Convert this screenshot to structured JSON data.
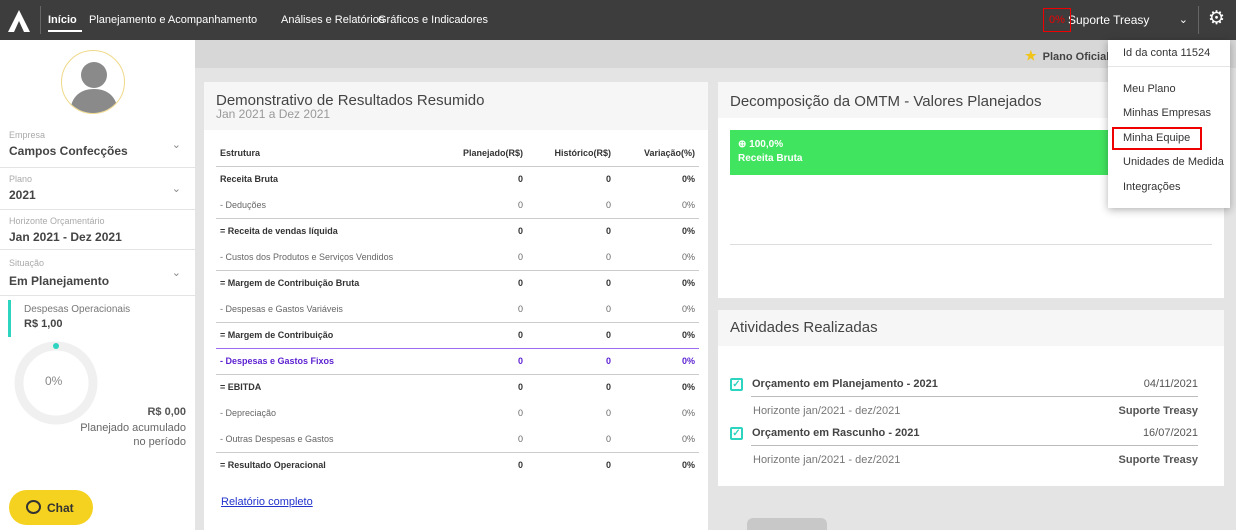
{
  "nav": {
    "items": [
      "Início",
      "Planejamento e Acompanhamento",
      "Análises e Relatórios",
      "Gráficos e Indicadores"
    ],
    "percent_badge": "0%",
    "user_name": "Suporte Treasy"
  },
  "subbar": {
    "plan_label": "Plano Oficial"
  },
  "sidebar": {
    "company_label": "Empresa",
    "company_value": "Campos Confecções",
    "plan_label": "Plano",
    "plan_value": "2021",
    "horizon_label": "Horizonte Orçamentário",
    "horizon_value": "Jan 2021 - Dez 2021",
    "status_label": "Situação",
    "status_value": "Em Planejamento",
    "expense_label": "Despesas Operacionais",
    "expense_value": "R$ 1,00",
    "gauge_percent": "0%",
    "gauge_amount": "R$ 0,00",
    "gauge_text_1": "Planejado acumulado",
    "gauge_text_2": "no período",
    "chat_label": "Chat"
  },
  "dre": {
    "title": "Demonstrativo de Resultados Resumido",
    "subtitle": "Jan 2021 a Dez 2021",
    "headers": [
      "Estrutura",
      "Planejado(R$)",
      "Histórico(R$)",
      "Variação(%)"
    ],
    "rows": [
      [
        "Receita Bruta",
        "0",
        "0",
        "0%"
      ],
      [
        "- Deduções",
        "0",
        "0",
        "0%"
      ],
      [
        "= Receita de vendas líquida",
        "0",
        "0",
        "0%"
      ],
      [
        "- Custos dos Produtos e Serviços Vendidos",
        "0",
        "0",
        "0%"
      ],
      [
        "= Margem de Contribuição Bruta",
        "0",
        "0",
        "0%"
      ],
      [
        "- Despesas e Gastos Variáveis",
        "0",
        "0",
        "0%"
      ],
      [
        "= Margem de Contribuição",
        "0",
        "0",
        "0%"
      ],
      [
        "- Despesas e Gastos Fixos",
        "0",
        "0",
        "0%"
      ],
      [
        "= EBITDA",
        "0",
        "0",
        "0%"
      ],
      [
        "- Depreciação",
        "0",
        "0",
        "0%"
      ],
      [
        "- Outras Despesas e Gastos",
        "0",
        "0",
        "0%"
      ],
      [
        "= Resultado Operacional",
        "0",
        "0",
        "0%"
      ]
    ],
    "link": "Relatório completo"
  },
  "omtm": {
    "title": "Decomposição da OMTM - Valores Planejados",
    "card_value": "100,0%",
    "card_label": "Receita Bruta"
  },
  "activities": {
    "title": "Atividades Realizadas",
    "items": [
      {
        "title": "Orçamento em Planejamento - 2021",
        "date": "04/11/2021",
        "sub": "Horizonte jan/2021 - dez/2021",
        "user": "Suporte Treasy"
      },
      {
        "title": "Orçamento em Rascunho - 2021",
        "date": "16/07/2021",
        "sub": "Horizonte jan/2021 - dez/2021",
        "user": "Suporte Treasy"
      }
    ]
  },
  "dropdown": {
    "account_id": "Id da conta 11524",
    "items": [
      "Meu Plano",
      "Minhas Empresas",
      "Minha Equipe",
      "Unidades de Medida",
      "Integrações"
    ]
  },
  "colors": {
    "accent_green": "#41e45e",
    "teal": "#2dd4c0",
    "highlight_red": "#e00000",
    "purple": "#5b1fd1"
  }
}
